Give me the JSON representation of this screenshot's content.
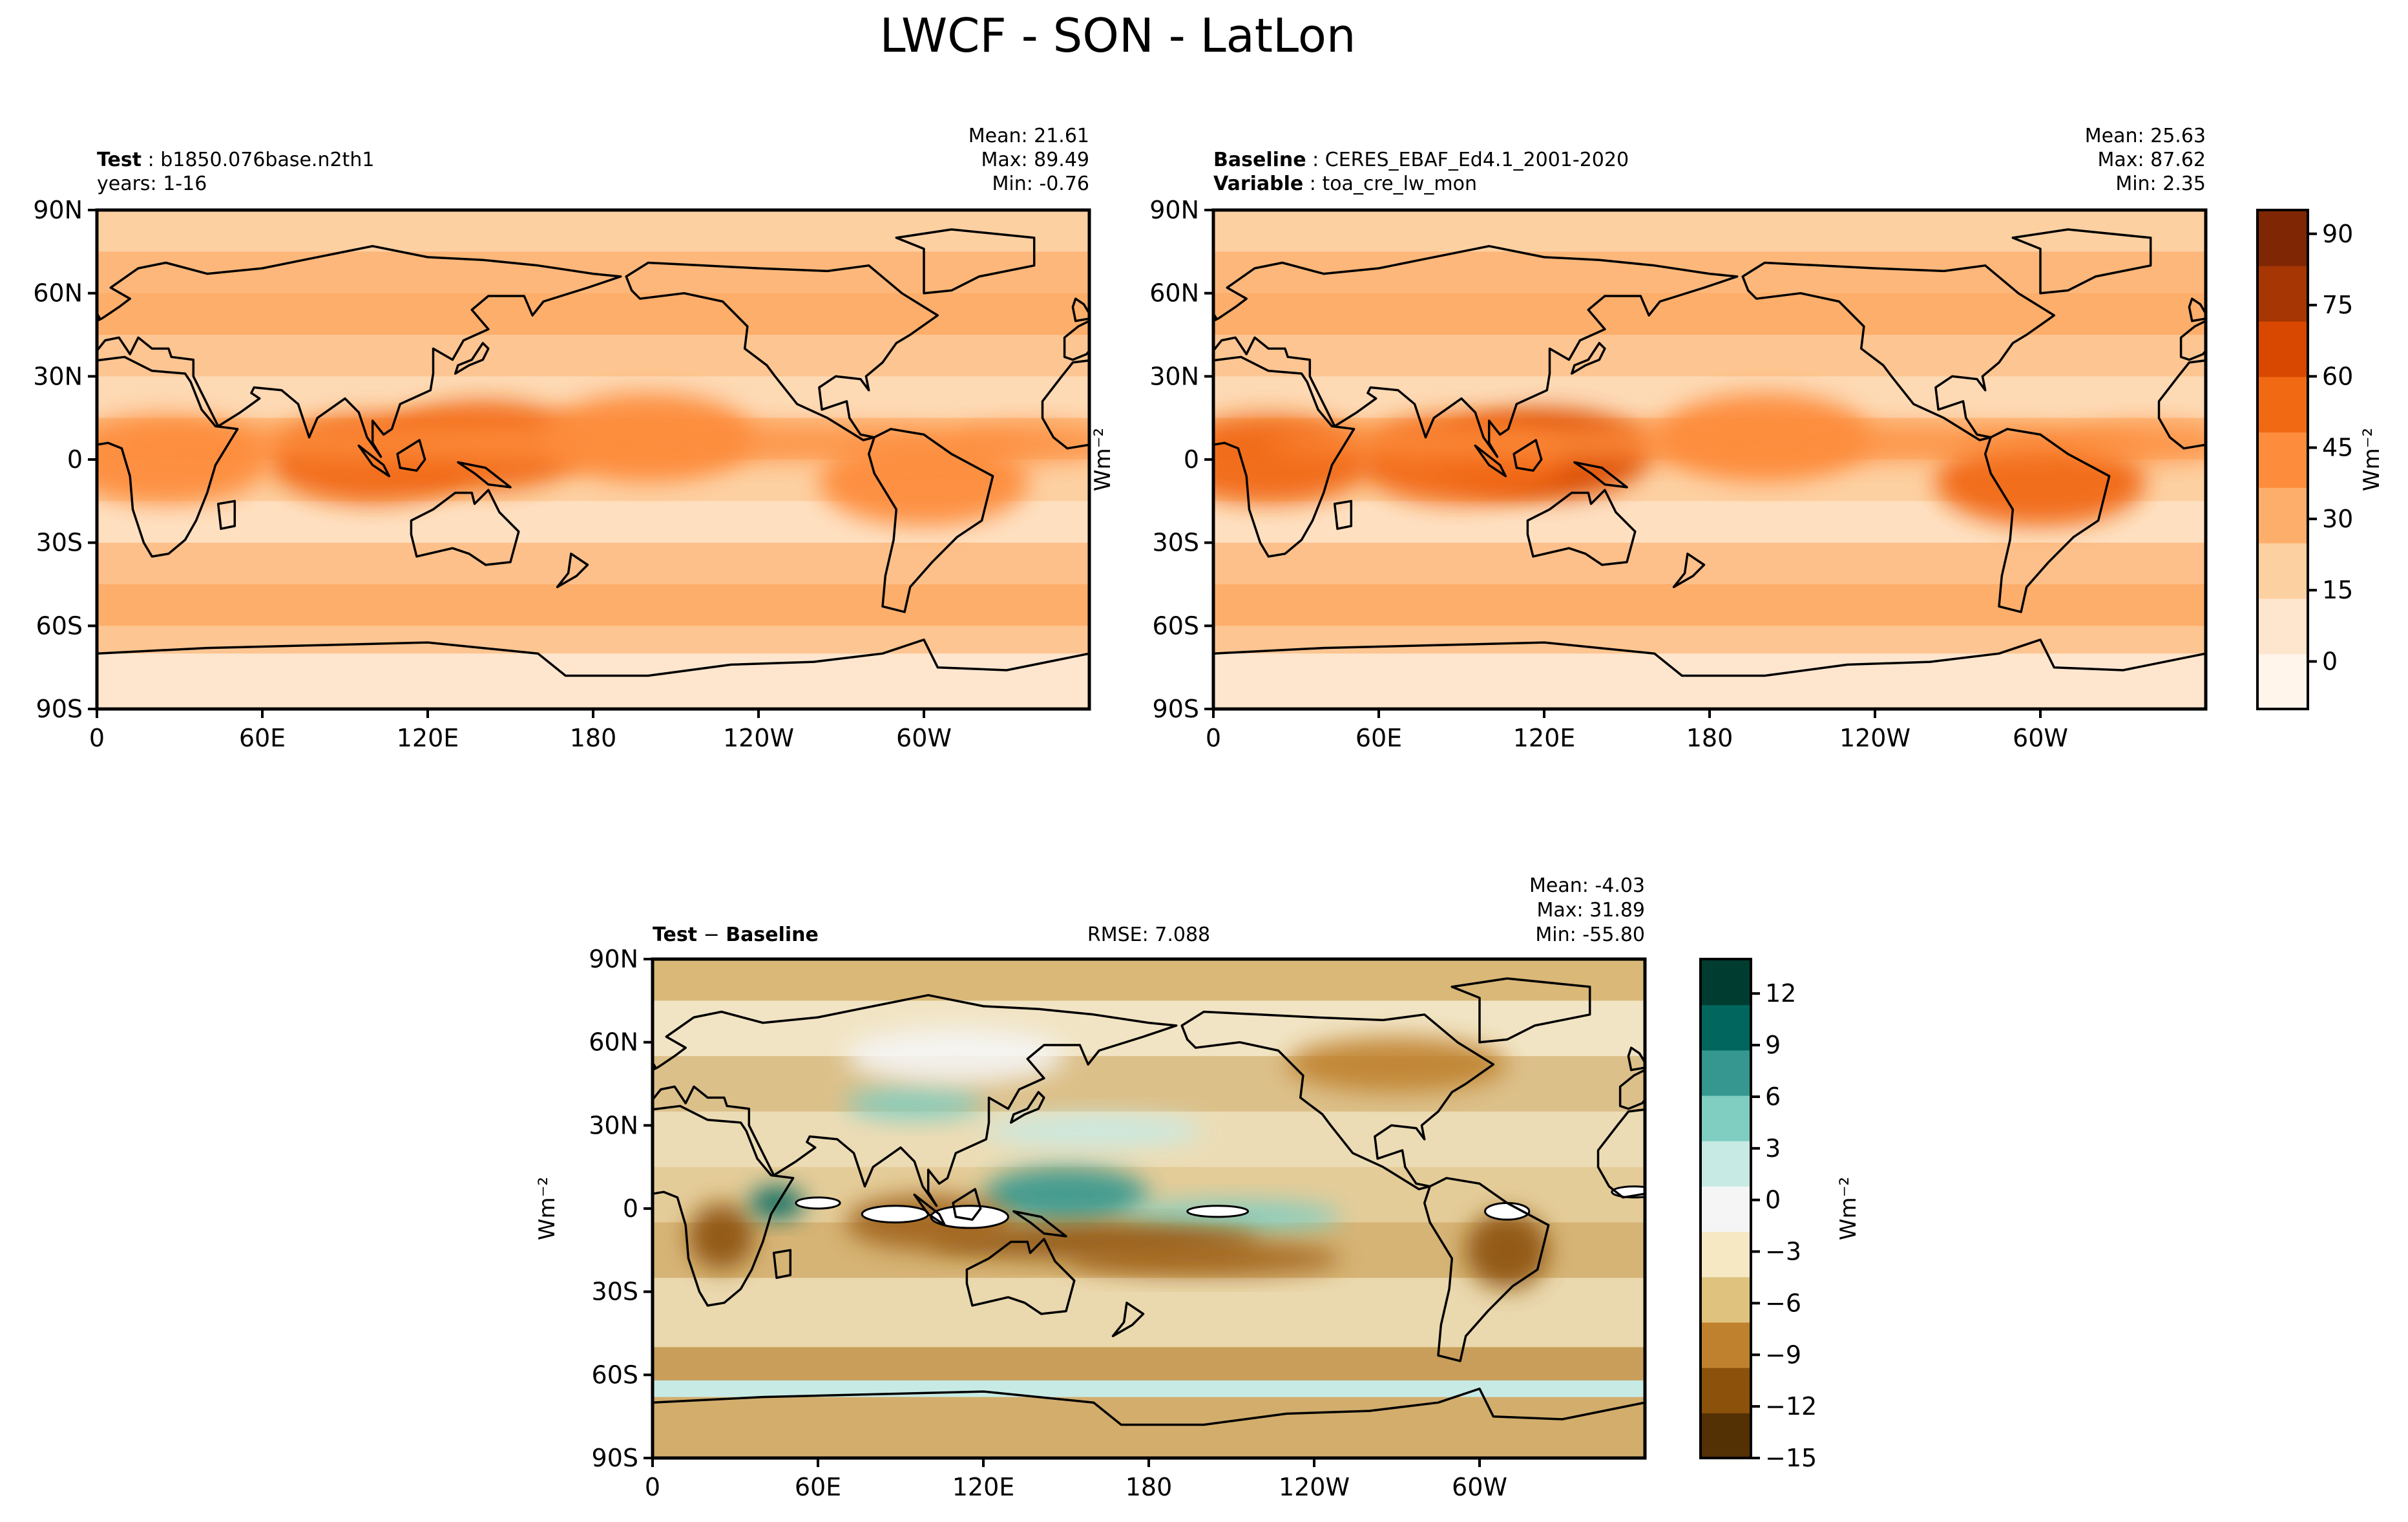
{
  "figure": {
    "title": "LWCF - SON - LatLon"
  },
  "panels": {
    "test": {
      "label_bold": "Test",
      "label_value": "b1850.076base.n2th1",
      "line2": "years: 1-16",
      "stats": [
        "Mean: 21.61",
        "Max: 89.49",
        "Min: -0.76"
      ],
      "yaxis_label": "Wm⁻²"
    },
    "baseline": {
      "label_bold": "Baseline",
      "label_value": "CERES_EBAF_Ed4.1_2001-2020",
      "line2_bold": "Variable",
      "line2_value": "toa_cre_lw_mon",
      "stats": [
        "Mean: 25.63",
        "Max: 87.62",
        "Min:  2.35"
      ]
    },
    "diff": {
      "label": "Test − Baseline",
      "label_bold_a": "Test",
      "label_sep": " − ",
      "label_bold_b": "Baseline",
      "rmse": "RMSE: 7.088",
      "stats": [
        "Mean: -4.03",
        "Max: 31.89",
        "Min: -55.80"
      ],
      "yaxis_label": "Wm⁻²"
    }
  },
  "colorbars": {
    "top": {
      "label": "Wm⁻²",
      "ticks": [
        "90",
        "75",
        "60",
        "45",
        "30",
        "15",
        "0"
      ],
      "colors": [
        "#fff5eb",
        "#fee6ce",
        "#fdd0a2",
        "#fdae6b",
        "#fd8d3c",
        "#f16913",
        "#d94801",
        "#a63603",
        "#7f2704"
      ]
    },
    "diff": {
      "label": "Wm⁻²",
      "ticks": [
        "12",
        "9",
        "6",
        "3",
        "0",
        "−3",
        "−6",
        "−9",
        "−12",
        "−15"
      ],
      "colors": [
        "#543005",
        "#8c510a",
        "#bf812d",
        "#dfc27d",
        "#f6e8c3",
        "#f5f5f5",
        "#c7eae5",
        "#80cdc1",
        "#35978f",
        "#01665e",
        "#003c30"
      ]
    }
  },
  "chart_data": [
    {
      "type": "heatmap",
      "title": "LWCF - SON - LatLon",
      "panel": "Test: b1850.076base.n2th1",
      "x_ticks": [
        "0",
        "60E",
        "120E",
        "180",
        "120W",
        "60W"
      ],
      "y_ticks": [
        "90N",
        "60N",
        "30N",
        "0",
        "30S",
        "60S",
        "90S"
      ],
      "xlim": [
        0,
        360
      ],
      "ylim": [
        -90,
        90
      ],
      "stats": {
        "mean": 21.61,
        "max": 89.49,
        "min": -0.76
      },
      "colorbar": {
        "label": "Wm⁻²",
        "range": [
          -10,
          95
        ]
      },
      "features": [
        {
          "lon": 140,
          "lat": 5,
          "value": 60
        },
        {
          "lon": 100,
          "lat": 0,
          "value": 55
        },
        {
          "lon": 25,
          "lat": 0,
          "value": 45
        },
        {
          "lon": 300,
          "lat": -8,
          "value": 45
        },
        {
          "lon": 200,
          "lat": 8,
          "value": 40
        }
      ]
    },
    {
      "type": "heatmap",
      "panel": "Baseline: CERES_EBAF_Ed4.1_2001-2020",
      "x_ticks": [
        "0",
        "60E",
        "120E",
        "180",
        "120W",
        "60W"
      ],
      "y_ticks": [
        "90N",
        "60N",
        "30N",
        "0",
        "30S",
        "60S",
        "90S"
      ],
      "xlim": [
        0,
        360
      ],
      "ylim": [
        -90,
        90
      ],
      "stats": {
        "mean": 25.63,
        "max": 87.62,
        "min": 2.35
      },
      "colorbar": {
        "label": "Wm⁻²",
        "range": [
          -10,
          95
        ]
      },
      "features": [
        {
          "lon": 120,
          "lat": 2,
          "value": 65
        },
        {
          "lon": 90,
          "lat": 0,
          "value": 60
        },
        {
          "lon": 20,
          "lat": 0,
          "value": 55
        },
        {
          "lon": 300,
          "lat": -8,
          "value": 55
        },
        {
          "lon": 200,
          "lat": 8,
          "value": 45
        }
      ]
    },
    {
      "type": "heatmap",
      "panel": "Test − Baseline",
      "x_ticks": [
        "0",
        "60E",
        "120E",
        "180",
        "120W",
        "60W"
      ],
      "y_ticks": [
        "90N",
        "60N",
        "30N",
        "0",
        "30S",
        "60S",
        "90S"
      ],
      "xlim": [
        0,
        360
      ],
      "ylim": [
        -90,
        90
      ],
      "rmse": 7.088,
      "stats": {
        "mean": -4.03,
        "max": 31.89,
        "min": -55.8
      },
      "colorbar": {
        "label": "Wm⁻²",
        "range": [
          -15,
          14
        ]
      }
    }
  ]
}
